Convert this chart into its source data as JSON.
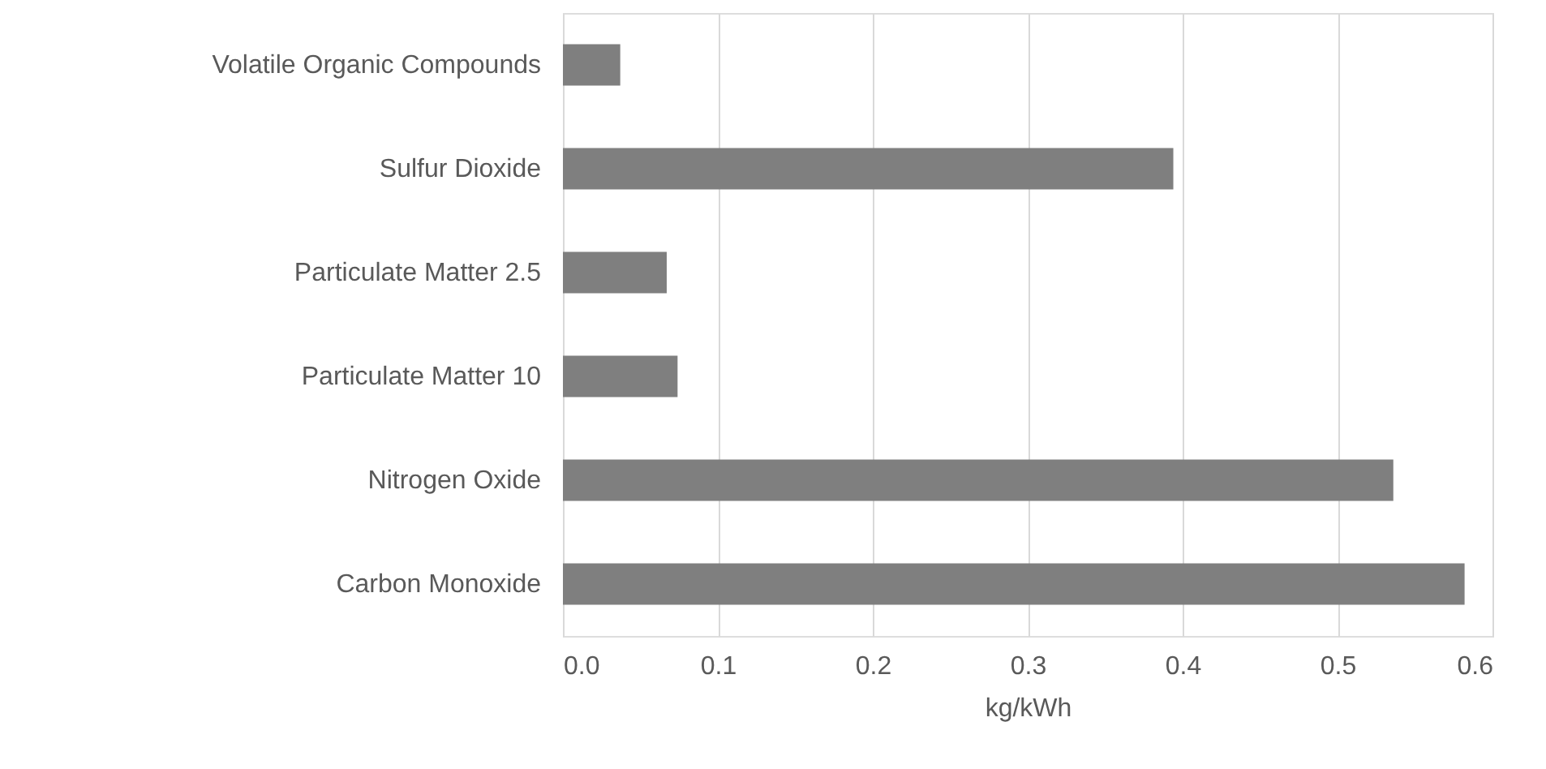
{
  "chart_data": {
    "type": "bar",
    "orientation": "horizontal",
    "categories": [
      "Volatile Organic Compounds",
      "Sulfur Dioxide",
      "Particulate Matter 2.5",
      "Particulate Matter 10",
      "Nitrogen Oxide",
      "Carbon Monoxide"
    ],
    "values": [
      0.037,
      0.394,
      0.067,
      0.074,
      0.536,
      0.582
    ],
    "color": "#7f7f7f",
    "xlabel": "kg/kWh",
    "xlim": [
      0,
      0.6
    ],
    "xticks": [
      {
        "value": 0,
        "label": "0.0"
      },
      0.1,
      0.2,
      0.3,
      0.4,
      0.5,
      0.6
    ],
    "grid": "x"
  }
}
